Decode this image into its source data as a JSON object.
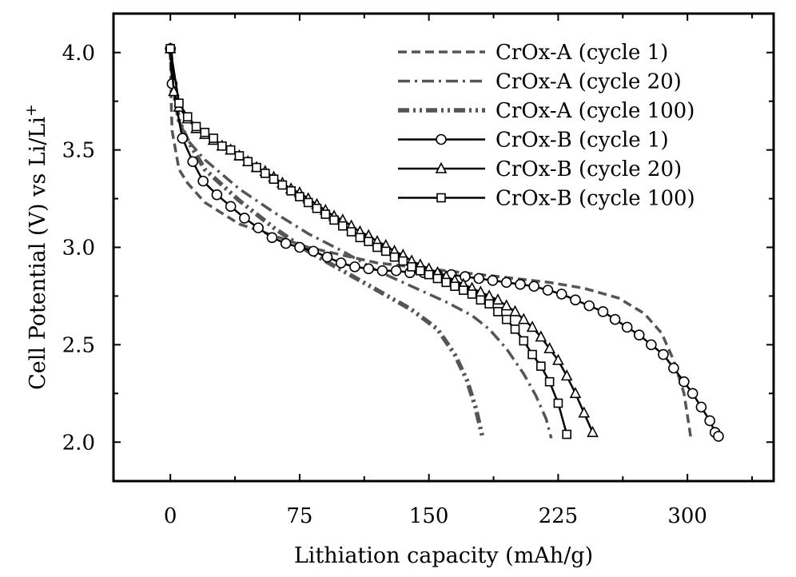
{
  "chart_data": {
    "type": "line",
    "title": "",
    "xlabel": "Lithiation capacity (mAh/g)",
    "ylabel_main": "Cell Potential (V) vs Li/Li",
    "ylabel_sup": "+",
    "xlim": [
      -33,
      350
    ],
    "ylim": [
      1.8,
      4.2
    ],
    "xticks": [
      0,
      75,
      150,
      225,
      300
    ],
    "xtick_labels": [
      "0",
      "75",
      "150",
      "225",
      "300"
    ],
    "xminor": [
      37.5,
      112.5,
      187.5,
      262.5,
      337.5
    ],
    "yticks": [
      2.0,
      2.5,
      3.0,
      3.5,
      4.0
    ],
    "ytick_labels": [
      "2.0",
      "2.5",
      "3.0",
      "3.5",
      "4.0"
    ],
    "yminor": [
      2.25,
      2.75,
      3.25,
      3.75
    ],
    "grid": false,
    "legend_position": "top-right",
    "series": [
      {
        "name": "CrOx-A (cycle 1)",
        "color": "#555555",
        "line": "dash",
        "marker": "none",
        "points": [
          [
            0,
            4.02
          ],
          [
            0.5,
            3.75
          ],
          [
            1,
            3.6
          ],
          [
            3,
            3.5
          ],
          [
            5,
            3.4
          ],
          [
            10,
            3.33
          ],
          [
            20,
            3.23
          ],
          [
            40,
            3.12
          ],
          [
            60,
            3.06
          ],
          [
            80,
            3.0
          ],
          [
            100,
            2.96
          ],
          [
            120,
            2.92
          ],
          [
            140,
            2.9
          ],
          [
            160,
            2.88
          ],
          [
            180,
            2.86
          ],
          [
            200,
            2.84
          ],
          [
            220,
            2.82
          ],
          [
            240,
            2.79
          ],
          [
            260,
            2.74
          ],
          [
            275,
            2.66
          ],
          [
            285,
            2.56
          ],
          [
            292,
            2.42
          ],
          [
            298,
            2.25
          ],
          [
            302,
            2.02
          ]
        ]
      },
      {
        "name": "CrOx-A (cycle 20)",
        "color": "#555555",
        "line": "dashdot",
        "marker": "none",
        "points": [
          [
            0,
            4.02
          ],
          [
            2,
            3.8
          ],
          [
            5,
            3.65
          ],
          [
            10,
            3.55
          ],
          [
            20,
            3.45
          ],
          [
            40,
            3.3
          ],
          [
            60,
            3.18
          ],
          [
            80,
            3.07
          ],
          [
            100,
            2.98
          ],
          [
            120,
            2.88
          ],
          [
            140,
            2.8
          ],
          [
            160,
            2.72
          ],
          [
            175,
            2.65
          ],
          [
            185,
            2.58
          ],
          [
            195,
            2.48
          ],
          [
            205,
            2.35
          ],
          [
            212,
            2.24
          ],
          [
            218,
            2.12
          ],
          [
            221,
            2.02
          ]
        ]
      },
      {
        "name": "CrOx-A (cycle 100)",
        "color": "#555555",
        "line": "dashdotdot",
        "marker": "none",
        "points": [
          [
            0,
            4.02
          ],
          [
            2,
            3.8
          ],
          [
            5,
            3.65
          ],
          [
            10,
            3.55
          ],
          [
            20,
            3.4
          ],
          [
            40,
            3.24
          ],
          [
            60,
            3.1
          ],
          [
            80,
            2.98
          ],
          [
            100,
            2.88
          ],
          [
            120,
            2.78
          ],
          [
            140,
            2.68
          ],
          [
            155,
            2.58
          ],
          [
            165,
            2.45
          ],
          [
            172,
            2.32
          ],
          [
            177,
            2.18
          ],
          [
            181,
            2.03
          ]
        ]
      },
      {
        "name": "CrOx-B (cycle 1)",
        "color": "#000000",
        "line": "solid",
        "marker": "circle",
        "points": [
          [
            0,
            4.02
          ],
          [
            1,
            3.84
          ],
          [
            7,
            3.56
          ],
          [
            13,
            3.44
          ],
          [
            19,
            3.34
          ],
          [
            27,
            3.27
          ],
          [
            35,
            3.21
          ],
          [
            43,
            3.15
          ],
          [
            51,
            3.1
          ],
          [
            59,
            3.05
          ],
          [
            67,
            3.02
          ],
          [
            75,
            3.0
          ],
          [
            83,
            2.98
          ],
          [
            91,
            2.95
          ],
          [
            99,
            2.92
          ],
          [
            107,
            2.9
          ],
          [
            115,
            2.89
          ],
          [
            123,
            2.88
          ],
          [
            131,
            2.88
          ],
          [
            139,
            2.87
          ],
          [
            147,
            2.87
          ],
          [
            155,
            2.86
          ],
          [
            163,
            2.86
          ],
          [
            171,
            2.85
          ],
          [
            179,
            2.84
          ],
          [
            187,
            2.83
          ],
          [
            195,
            2.82
          ],
          [
            203,
            2.81
          ],
          [
            211,
            2.8
          ],
          [
            219,
            2.78
          ],
          [
            227,
            2.76
          ],
          [
            235,
            2.73
          ],
          [
            243,
            2.7
          ],
          [
            251,
            2.67
          ],
          [
            258,
            2.63
          ],
          [
            265,
            2.59
          ],
          [
            272,
            2.55
          ],
          [
            279,
            2.5
          ],
          [
            286,
            2.45
          ],
          [
            292,
            2.38
          ],
          [
            298,
            2.31
          ],
          [
            303,
            2.25
          ],
          [
            308,
            2.18
          ],
          [
            313,
            2.11
          ],
          [
            316,
            2.05
          ],
          [
            318,
            2.03
          ]
        ]
      },
      {
        "name": "CrOx-B (cycle 20)",
        "color": "#000000",
        "line": "solid",
        "marker": "triangle",
        "points": [
          [
            0,
            4.02
          ],
          [
            2,
            3.8
          ],
          [
            5,
            3.72
          ],
          [
            10,
            3.66
          ],
          [
            15,
            3.61
          ],
          [
            20,
            3.58
          ],
          [
            25,
            3.55
          ],
          [
            30,
            3.52
          ],
          [
            35,
            3.5
          ],
          [
            40,
            3.47
          ],
          [
            45,
            3.44
          ],
          [
            50,
            3.41
          ],
          [
            55,
            3.39
          ],
          [
            60,
            3.36
          ],
          [
            65,
            3.33
          ],
          [
            70,
            3.3
          ],
          [
            75,
            3.28
          ],
          [
            80,
            3.25
          ],
          [
            85,
            3.22
          ],
          [
            90,
            3.19
          ],
          [
            95,
            3.16
          ],
          [
            100,
            3.14
          ],
          [
            105,
            3.11
          ],
          [
            110,
            3.08
          ],
          [
            115,
            3.06
          ],
          [
            120,
            3.03
          ],
          [
            125,
            3.01
          ],
          [
            130,
            2.98
          ],
          [
            135,
            2.96
          ],
          [
            140,
            2.93
          ],
          [
            145,
            2.91
          ],
          [
            150,
            2.89
          ],
          [
            155,
            2.87
          ],
          [
            160,
            2.85
          ],
          [
            165,
            2.83
          ],
          [
            170,
            2.81
          ],
          [
            175,
            2.79
          ],
          [
            180,
            2.77
          ],
          [
            185,
            2.75
          ],
          [
            190,
            2.73
          ],
          [
            195,
            2.7
          ],
          [
            200,
            2.67
          ],
          [
            205,
            2.63
          ],
          [
            210,
            2.59
          ],
          [
            215,
            2.54
          ],
          [
            220,
            2.48
          ],
          [
            225,
            2.42
          ],
          [
            230,
            2.34
          ],
          [
            235,
            2.25
          ],
          [
            240,
            2.15
          ],
          [
            245,
            2.05
          ]
        ]
      },
      {
        "name": "CrOx-B (cycle 100)",
        "color": "#000000",
        "line": "solid",
        "marker": "square",
        "points": [
          [
            0,
            4.02
          ],
          [
            5,
            3.74
          ],
          [
            10,
            3.67
          ],
          [
            15,
            3.62
          ],
          [
            20,
            3.59
          ],
          [
            25,
            3.56
          ],
          [
            30,
            3.52
          ],
          [
            35,
            3.5
          ],
          [
            40,
            3.47
          ],
          [
            45,
            3.44
          ],
          [
            50,
            3.41
          ],
          [
            55,
            3.38
          ],
          [
            60,
            3.35
          ],
          [
            65,
            3.32
          ],
          [
            70,
            3.29
          ],
          [
            75,
            3.26
          ],
          [
            80,
            3.23
          ],
          [
            85,
            3.2
          ],
          [
            90,
            3.17
          ],
          [
            95,
            3.14
          ],
          [
            100,
            3.11
          ],
          [
            105,
            3.08
          ],
          [
            110,
            3.05
          ],
          [
            115,
            3.03
          ],
          [
            120,
            3.0
          ],
          [
            125,
            2.98
          ],
          [
            130,
            2.95
          ],
          [
            135,
            2.93
          ],
          [
            140,
            2.9
          ],
          [
            145,
            2.88
          ],
          [
            150,
            2.86
          ],
          [
            155,
            2.84
          ],
          [
            160,
            2.82
          ],
          [
            165,
            2.8
          ],
          [
            170,
            2.78
          ],
          [
            175,
            2.76
          ],
          [
            180,
            2.73
          ],
          [
            185,
            2.71
          ],
          [
            190,
            2.67
          ],
          [
            195,
            2.63
          ],
          [
            200,
            2.58
          ],
          [
            205,
            2.52
          ],
          [
            210,
            2.45
          ],
          [
            215,
            2.39
          ],
          [
            220,
            2.31
          ],
          [
            225,
            2.2
          ],
          [
            230,
            2.04
          ]
        ]
      }
    ]
  }
}
